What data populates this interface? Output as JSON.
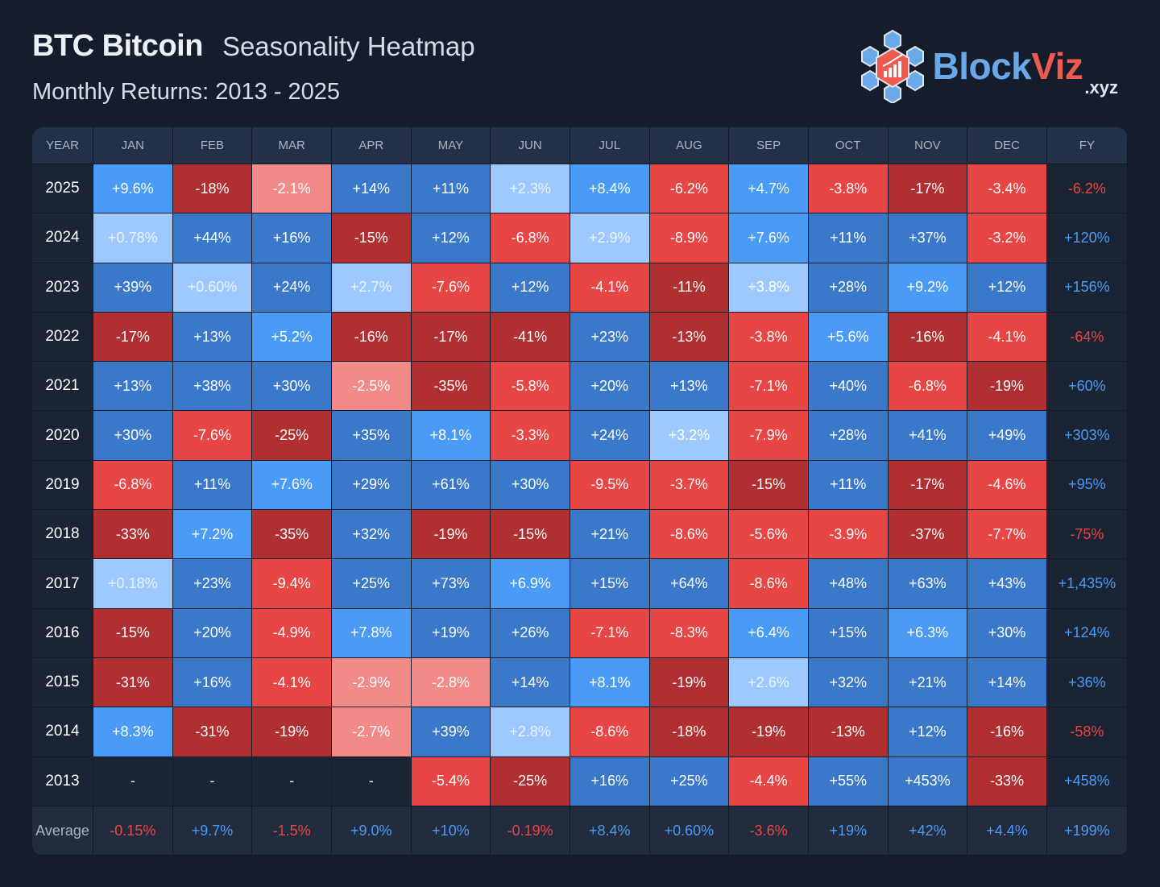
{
  "header": {
    "ticker": "BTC Bitcoin",
    "title": "Seasonality Heatmap",
    "subtitle": "Monthly Returns: 2013 - 2025"
  },
  "logo": {
    "word_a": "Block",
    "word_b": "Viz",
    "tld": ".xyz"
  },
  "colors": {
    "background": "#151d2c",
    "pos_light": "#9ec9ff",
    "pos_mid": "#4a9bf5",
    "pos_dark": "#3a78c9",
    "neg_light": "#f28b88",
    "neg_mid": "#e84545",
    "neg_dark": "#b02f31",
    "text_pos": "#4a9bf5",
    "text_neg": "#e84545"
  },
  "chart_data": {
    "type": "heatmap",
    "title": "Seasonality Heatmap",
    "year_header": "YEAR",
    "columns": [
      "JAN",
      "FEB",
      "MAR",
      "APR",
      "MAY",
      "JUN",
      "JUL",
      "AUG",
      "SEP",
      "OCT",
      "NOV",
      "DEC"
    ],
    "fy_header": "FY",
    "rows": [
      {
        "year": "2025",
        "values": [
          "+9.6%",
          "-18%",
          "-2.1%",
          "+14%",
          "+11%",
          "+2.3%",
          "+8.4%",
          "-6.2%",
          "+4.7%",
          "-3.8%",
          "-17%",
          "-3.4%"
        ],
        "fy": "-6.2%"
      },
      {
        "year": "2024",
        "values": [
          "+0.78%",
          "+44%",
          "+16%",
          "-15%",
          "+12%",
          "-6.8%",
          "+2.9%",
          "-8.9%",
          "+7.6%",
          "+11%",
          "+37%",
          "-3.2%"
        ],
        "fy": "+120%"
      },
      {
        "year": "2023",
        "values": [
          "+39%",
          "+0.60%",
          "+24%",
          "+2.7%",
          "-7.6%",
          "+12%",
          "-4.1%",
          "-11%",
          "+3.8%",
          "+28%",
          "+9.2%",
          "+12%"
        ],
        "fy": "+156%"
      },
      {
        "year": "2022",
        "values": [
          "-17%",
          "+13%",
          "+5.2%",
          "-16%",
          "-17%",
          "-41%",
          "+23%",
          "-13%",
          "-3.8%",
          "+5.6%",
          "-16%",
          "-4.1%"
        ],
        "fy": "-64%"
      },
      {
        "year": "2021",
        "values": [
          "+13%",
          "+38%",
          "+30%",
          "-2.5%",
          "-35%",
          "-5.8%",
          "+20%",
          "+13%",
          "-7.1%",
          "+40%",
          "-6.8%",
          "-19%"
        ],
        "fy": "+60%"
      },
      {
        "year": "2020",
        "values": [
          "+30%",
          "-7.6%",
          "-25%",
          "+35%",
          "+8.1%",
          "-3.3%",
          "+24%",
          "+3.2%",
          "-7.9%",
          "+28%",
          "+41%",
          "+49%"
        ],
        "fy": "+303%"
      },
      {
        "year": "2019",
        "values": [
          "-6.8%",
          "+11%",
          "+7.6%",
          "+29%",
          "+61%",
          "+30%",
          "-9.5%",
          "-3.7%",
          "-15%",
          "+11%",
          "-17%",
          "-4.6%"
        ],
        "fy": "+95%"
      },
      {
        "year": "2018",
        "values": [
          "-33%",
          "+7.2%",
          "-35%",
          "+32%",
          "-19%",
          "-15%",
          "+21%",
          "-8.6%",
          "-5.6%",
          "-3.9%",
          "-37%",
          "-7.7%"
        ],
        "fy": "-75%"
      },
      {
        "year": "2017",
        "values": [
          "+0.18%",
          "+23%",
          "-9.4%",
          "+25%",
          "+73%",
          "+6.9%",
          "+15%",
          "+64%",
          "-8.6%",
          "+48%",
          "+63%",
          "+43%"
        ],
        "fy": "+1,435%"
      },
      {
        "year": "2016",
        "values": [
          "-15%",
          "+20%",
          "-4.9%",
          "+7.8%",
          "+19%",
          "+26%",
          "-7.1%",
          "-8.3%",
          "+6.4%",
          "+15%",
          "+6.3%",
          "+30%"
        ],
        "fy": "+124%"
      },
      {
        "year": "2015",
        "values": [
          "-31%",
          "+16%",
          "-4.1%",
          "-2.9%",
          "-2.8%",
          "+14%",
          "+8.1%",
          "-19%",
          "+2.6%",
          "+32%",
          "+21%",
          "+14%"
        ],
        "fy": "+36%"
      },
      {
        "year": "2014",
        "values": [
          "+8.3%",
          "-31%",
          "-19%",
          "-2.7%",
          "+39%",
          "+2.8%",
          "-8.6%",
          "-18%",
          "-19%",
          "-13%",
          "+12%",
          "-16%"
        ],
        "fy": "-58%"
      },
      {
        "year": "2013",
        "values": [
          "-",
          "-",
          "-",
          "-",
          "-5.4%",
          "-25%",
          "+16%",
          "+25%",
          "-4.4%",
          "+55%",
          "+453%",
          "-33%"
        ],
        "fy": "+458%"
      }
    ],
    "average": {
      "label": "Average",
      "values": [
        "-0.15%",
        "+9.7%",
        "-1.5%",
        "+9.0%",
        "+10%",
        "-0.19%",
        "+8.4%",
        "+0.60%",
        "-3.6%",
        "+19%",
        "+42%",
        "+4.4%"
      ],
      "fy": "+199%"
    }
  }
}
